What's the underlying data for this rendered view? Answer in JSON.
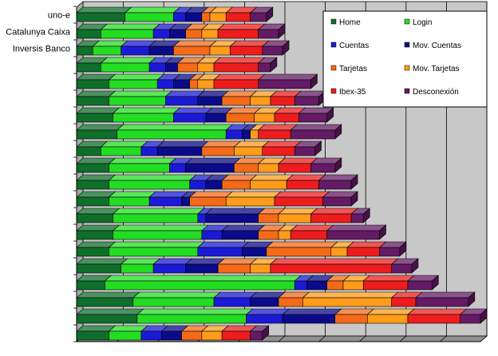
{
  "colors": {
    "Home": "#0e6e2a",
    "Login": "#22dd22",
    "Cuentas": "#1a1ad6",
    "Mov. Cuentas": "#0a0a8a",
    "Tarjetas": "#f46a18",
    "Mov. Tarjetas": "#ff9c1a",
    "Ibex-35": "#ee1c1c",
    "Desconexión": "#641a64",
    "wall": "#c8c8c8",
    "floor": "#909090",
    "legend_bg": "#ffffff"
  },
  "chart_data": {
    "type": "bar",
    "orientation": "horizontal",
    "stacked": true,
    "three_d": true,
    "title": "",
    "xlabel": "",
    "ylabel": "",
    "xlim": [
      0,
      10
    ],
    "grid": true,
    "legend_position": "top-right",
    "categories": [
      "uno-e",
      "Catalunya Caixa",
      "Inversis Banco",
      "",
      "",
      "",
      "",
      "",
      "",
      "",
      "",
      "",
      "",
      "",
      "",
      "",
      "",
      "",
      "",
      ""
    ],
    "series": [
      {
        "name": "Home",
        "values": [
          1.2,
          0.6,
          0.4,
          0.6,
          0.8,
          0.8,
          0.9,
          1.0,
          0.6,
          0.8,
          0.8,
          0.8,
          0.9,
          0.9,
          0.8,
          1.1,
          0.7,
          1.4,
          1.5,
          0.8
        ]
      },
      {
        "name": "Login",
        "values": [
          1.2,
          1.3,
          0.7,
          1.2,
          1.2,
          1.4,
          1.5,
          2.7,
          1.0,
          1.5,
          2.0,
          1.0,
          2.1,
          2.2,
          2.2,
          0.8,
          4.7,
          2.0,
          2.7,
          0.8
        ]
      },
      {
        "name": "Cuentas",
        "values": [
          0.3,
          0.4,
          0.7,
          0.4,
          0.4,
          0.8,
          0.8,
          0.4,
          0.4,
          0.4,
          0.4,
          0.8,
          0.2,
          0.5,
          1.1,
          0.8,
          0.3,
          0.9,
          0.9,
          0.5
        ]
      },
      {
        "name": "Mov. Cuentas",
        "values": [
          0.4,
          0.4,
          0.6,
          0.3,
          0.4,
          0.6,
          0.5,
          0.2,
          1.1,
          1.2,
          0.4,
          0.2,
          1.3,
          0.9,
          0.6,
          0.8,
          0.5,
          0.7,
          1.3,
          0.5
        ]
      },
      {
        "name": "Tarjetas",
        "values": [
          0.2,
          0.4,
          0.9,
          0.5,
          0.2,
          0.7,
          0.7,
          0.0,
          0.8,
          0.6,
          0.7,
          0.9,
          0.5,
          0.5,
          1.6,
          0.8,
          0.4,
          0.6,
          0.8,
          0.5
        ]
      },
      {
        "name": "Mov. Tarjetas",
        "values": [
          0.4,
          0.4,
          0.5,
          0.4,
          0.4,
          0.5,
          0.5,
          0.2,
          0.7,
          0.5,
          0.9,
          1.2,
          0.8,
          0.3,
          0.4,
          0.5,
          0.5,
          2.2,
          1.0,
          0.5
        ]
      },
      {
        "name": "Ibex-35",
        "values": [
          0.6,
          1.0,
          0.8,
          1.1,
          1.1,
          0.6,
          0.6,
          0.8,
          0.8,
          0.8,
          0.8,
          1.2,
          1.0,
          0.9,
          0.8,
          3.0,
          1.1,
          0.6,
          1.3,
          0.7
        ]
      },
      {
        "name": "Desconexión",
        "values": [
          0.4,
          0.5,
          0.5,
          0.3,
          1.3,
          0.6,
          0.7,
          1.1,
          0.5,
          0.6,
          0.8,
          0.7,
          0.3,
          1.3,
          0.5,
          0.5,
          0.6,
          1.3,
          0.5,
          0.3
        ]
      }
    ]
  }
}
